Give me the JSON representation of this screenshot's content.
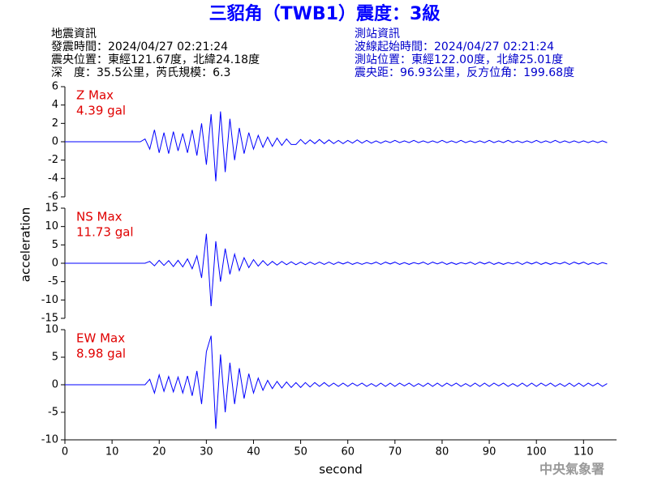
{
  "header": {
    "title": "三貂角（TWB1）震度：3級",
    "left": [
      "地震資訊",
      "發震時間：2024/04/27 02:21:24",
      "震央位置：東經121.67度，北緯24.18度",
      "深　度：35.5公里，芮氏規模：6.3"
    ],
    "right": [
      "測站資訊",
      "波線起始時間：2024/04/27 02:21:24",
      "測站位置：東經122.00度，北緯25.01度",
      "震央距：96.93公里，反方位角：199.68度"
    ]
  },
  "footer": "中央氣象署",
  "chart_data": {
    "type": "line",
    "xlabel": "second",
    "ylabel": "acceleration",
    "color": "#0000ff",
    "xlim": [
      0,
      117
    ],
    "xticks": [
      0,
      10,
      20,
      30,
      40,
      50,
      60,
      70,
      80,
      90,
      100,
      110
    ],
    "x": [
      0,
      1,
      2,
      3,
      4,
      5,
      6,
      7,
      8,
      9,
      10,
      11,
      12,
      13,
      14,
      15,
      16,
      17,
      18,
      19,
      20,
      21,
      22,
      23,
      24,
      25,
      26,
      27,
      28,
      29,
      30,
      31,
      32,
      33,
      34,
      35,
      36,
      37,
      38,
      39,
      40,
      41,
      42,
      43,
      44,
      45,
      46,
      47,
      48,
      49,
      50,
      51,
      52,
      53,
      54,
      55,
      56,
      57,
      58,
      59,
      60,
      61,
      62,
      63,
      64,
      65,
      66,
      67,
      68,
      69,
      70,
      71,
      72,
      73,
      74,
      75,
      76,
      77,
      78,
      79,
      80,
      81,
      82,
      83,
      84,
      85,
      86,
      87,
      88,
      89,
      90,
      91,
      92,
      93,
      94,
      95,
      96,
      97,
      98,
      99,
      100,
      101,
      102,
      103,
      104,
      105,
      106,
      107,
      108,
      109,
      110,
      111,
      112,
      113,
      114,
      115
    ],
    "panels": [
      {
        "annotation": [
          "Z Max",
          "4.39 gal"
        ],
        "ylim": [
          -6,
          6
        ],
        "yticks": [
          6,
          4,
          2,
          0,
          -2,
          -4,
          -6
        ],
        "values": [
          0,
          0,
          0,
          0,
          0,
          0,
          0,
          0,
          0,
          0,
          0,
          0,
          0,
          0,
          0,
          0,
          0,
          0.3,
          -0.8,
          1.3,
          -1.2,
          1.0,
          -1.3,
          1.1,
          -1.0,
          0.9,
          -1.2,
          1.3,
          -1.5,
          2.0,
          -2.5,
          3.0,
          -4.3,
          3.3,
          -3.3,
          2.5,
          -2.0,
          1.5,
          -1.3,
          1.0,
          -0.8,
          0.7,
          -0.6,
          0.5,
          -0.5,
          0.4,
          -0.4,
          0.3,
          -0.3,
          -0.3,
          0.25,
          -0.25,
          0.2,
          -0.2,
          0.25,
          -0.2,
          0.2,
          -0.2,
          0.15,
          -0.2,
          0.15,
          -0.15,
          0.2,
          -0.15,
          0.15,
          -0.15,
          0.1,
          -0.15,
          0.1,
          -0.1,
          0.15,
          -0.1,
          0.1,
          -0.1,
          0.15,
          -0.1,
          0.1,
          -0.1,
          0.1,
          -0.1,
          0.15,
          -0.1,
          0.1,
          -0.1,
          0.15,
          -0.1,
          0.1,
          -0.1,
          0.1,
          -0.1,
          0.15,
          -0.1,
          0.1,
          -0.1,
          0.15,
          -0.1,
          0.1,
          -0.1,
          0.1,
          -0.1,
          0.15,
          -0.1,
          0.1,
          -0.1,
          0.15,
          -0.1,
          0.1,
          -0.1,
          0.1,
          -0.1,
          0.1,
          -0.1,
          0.1,
          -0.1,
          0.1,
          -0.1
        ]
      },
      {
        "annotation": [
          "NS Max",
          "11.73 gal"
        ],
        "ylim": [
          -15,
          15
        ],
        "yticks": [
          15,
          10,
          5,
          0,
          -5,
          -10,
          -15
        ],
        "values": [
          0,
          0,
          0,
          0,
          0,
          0,
          0,
          0,
          0,
          0,
          0,
          0,
          0,
          0,
          0,
          0,
          0,
          0,
          0.5,
          -0.7,
          0.8,
          -0.6,
          0.7,
          -0.9,
          0.8,
          -1.0,
          1.2,
          -1.5,
          2.0,
          -4.0,
          8.0,
          -11.7,
          6.0,
          -5.0,
          4.0,
          -3.0,
          2.5,
          -2.0,
          1.5,
          -1.2,
          1.0,
          -0.8,
          0.7,
          -0.6,
          0.5,
          -0.5,
          0.5,
          -0.4,
          0.4,
          -0.4,
          0.3,
          -0.4,
          0.3,
          -0.3,
          0.3,
          -0.3,
          0.3,
          -0.3,
          0.3,
          -0.2,
          0.3,
          -0.3,
          0.2,
          -0.3,
          0.2,
          -0.2,
          0.3,
          -0.3,
          0.3,
          -0.2,
          0.3,
          -0.3,
          0.2,
          -0.3,
          0.2,
          -0.2,
          0.3,
          -0.3,
          0.3,
          -0.2,
          0.3,
          -0.3,
          0.2,
          -0.3,
          0.2,
          -0.2,
          0.3,
          -0.3,
          0.3,
          -0.2,
          0.3,
          -0.3,
          0.2,
          -0.3,
          0.2,
          -0.2,
          0.3,
          -0.3,
          0.3,
          -0.2,
          0.3,
          -0.3,
          0.2,
          -0.3,
          0.2,
          -0.2,
          0.3,
          -0.3,
          0.3,
          -0.2,
          0.3,
          -0.3,
          0.2,
          -0.3,
          0.2,
          -0.2
        ]
      },
      {
        "annotation": [
          "EW Max",
          "8.98 gal"
        ],
        "ylim": [
          -10,
          10
        ],
        "yticks": [
          10,
          5,
          0,
          -5,
          -10
        ],
        "values": [
          0,
          0,
          0,
          0,
          0,
          0,
          0,
          0,
          0,
          0,
          0,
          0,
          0,
          0,
          0,
          0,
          0,
          0,
          1.0,
          -1.5,
          1.8,
          -1.2,
          1.5,
          -1.3,
          1.4,
          -1.5,
          1.6,
          -2.0,
          2.5,
          -3.5,
          6.0,
          8.9,
          -8.0,
          5.5,
          -5.0,
          4.0,
          -3.5,
          3.0,
          -2.5,
          2.0,
          -1.5,
          1.2,
          -1.0,
          0.8,
          -0.7,
          0.6,
          -0.6,
          0.5,
          -0.5,
          0.4,
          -0.5,
          0.4,
          -0.4,
          0.4,
          -0.3,
          0.4,
          -0.3,
          0.3,
          -0.3,
          0.3,
          -0.3,
          0.3,
          -0.2,
          0.3,
          -0.3,
          0.2,
          -0.3,
          0.3,
          -0.3,
          0.3,
          -0.3,
          0.3,
          -0.2,
          0.3,
          -0.3,
          0.2,
          -0.3,
          0.3,
          -0.3,
          0.3,
          -0.3,
          0.3,
          -0.2,
          0.3,
          -0.3,
          0.2,
          -0.3,
          0.3,
          -0.3,
          0.3,
          -0.3,
          0.3,
          -0.2,
          0.3,
          -0.3,
          0.2,
          -0.3,
          0.3,
          -0.3,
          0.3,
          -0.3,
          0.3,
          -0.2,
          0.3,
          -0.3,
          0.2,
          -0.3,
          0.3,
          -0.3,
          0.3,
          -0.3,
          0.3,
          -0.2,
          0.3,
          -0.3,
          0.2
        ]
      }
    ]
  }
}
